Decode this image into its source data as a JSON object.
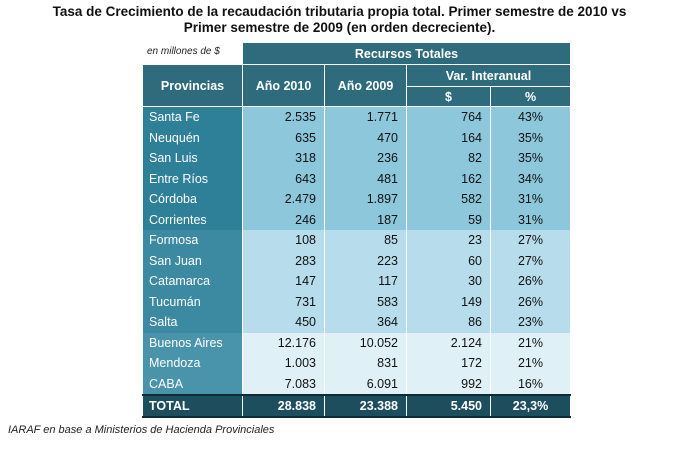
{
  "title_line1": "Tasa de Crecimiento de la recaudación tributaria propia total. Primer semestre de 2010 vs",
  "title_line2": "Primer semestre de 2009 (en orden decreciente).",
  "units_note": "en millones de $",
  "source": "IARAF en base a Ministerios de Hacienda Provinciales",
  "headers": {
    "recursos_totales": "Recursos Totales",
    "provincias": "Provincias",
    "anio_2010": "Año 2010",
    "anio_2009": "Año 2009",
    "var_interanual": "Var. Interanual",
    "pesos": "$",
    "pct": "%"
  },
  "rows": [
    {
      "provincia": "Santa Fe",
      "y2010": "2.535",
      "y2009": "1.771",
      "var": "764",
      "pct": "43%",
      "group": 1
    },
    {
      "provincia": "Neuquén",
      "y2010": "635",
      "y2009": "470",
      "var": "164",
      "pct": "35%",
      "group": 1
    },
    {
      "provincia": "San Luis",
      "y2010": "318",
      "y2009": "236",
      "var": "82",
      "pct": "35%",
      "group": 1
    },
    {
      "provincia": "Entre Ríos",
      "y2010": "643",
      "y2009": "481",
      "var": "162",
      "pct": "34%",
      "group": 1
    },
    {
      "provincia": "Córdoba",
      "y2010": "2.479",
      "y2009": "1.897",
      "var": "582",
      "pct": "31%",
      "group": 1
    },
    {
      "provincia": "Corrientes",
      "y2010": "246",
      "y2009": "187",
      "var": "59",
      "pct": "31%",
      "group": 1
    },
    {
      "provincia": "Formosa",
      "y2010": "108",
      "y2009": "85",
      "var": "23",
      "pct": "27%",
      "group": 2
    },
    {
      "provincia": "San Juan",
      "y2010": "283",
      "y2009": "223",
      "var": "60",
      "pct": "27%",
      "group": 2
    },
    {
      "provincia": "Catamarca",
      "y2010": "147",
      "y2009": "117",
      "var": "30",
      "pct": "26%",
      "group": 2
    },
    {
      "provincia": "Tucumán",
      "y2010": "731",
      "y2009": "583",
      "var": "149",
      "pct": "26%",
      "group": 2
    },
    {
      "provincia": "Salta",
      "y2010": "450",
      "y2009": "364",
      "var": "86",
      "pct": "23%",
      "group": 2
    },
    {
      "provincia": "Buenos Aires",
      "y2010": "12.176",
      "y2009": "10.052",
      "var": "2.124",
      "pct": "21%",
      "group": 3
    },
    {
      "provincia": "Mendoza",
      "y2010": "1.003",
      "y2009": "831",
      "var": "172",
      "pct": "21%",
      "group": 3
    },
    {
      "provincia": "CABA",
      "y2010": "7.083",
      "y2009": "6.091",
      "var": "992",
      "pct": "16%",
      "group": 3
    }
  ],
  "total": {
    "label": "TOTAL",
    "y2010": "28.838",
    "y2009": "23.388",
    "var": "5.450",
    "pct": "23,3%"
  }
}
